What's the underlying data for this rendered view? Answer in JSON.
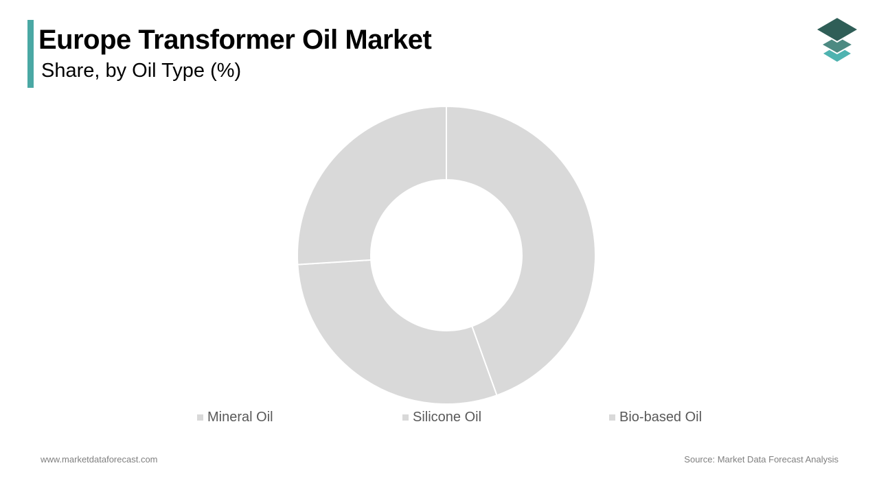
{
  "header": {
    "title": "Europe Transformer Oil Market",
    "subtitle": "Share, by Oil Type (%)",
    "accent_color": "#4aa8a4",
    "logo_icon": "layers-stack-icon",
    "logo_colors": [
      "#2f5e57",
      "#4d8a82",
      "#4fb3b0"
    ]
  },
  "chart_data": {
    "type": "pie",
    "style": "donut",
    "categories": [
      "Mineral Oil",
      "Silicone Oil",
      "Bio-based Oil"
    ],
    "values": [
      44.5,
      29.5,
      26.0
    ],
    "colors": [
      "#d9d9d9",
      "#d9d9d9",
      "#d9d9d9"
    ],
    "legend": "bottom",
    "start_angle_deg": 0,
    "direction": "clockwise",
    "separator_color": "#ffffff"
  },
  "footer": {
    "website": "www.marketdataforecast.com",
    "source": "Source: Market Data Forecast Analysis"
  }
}
